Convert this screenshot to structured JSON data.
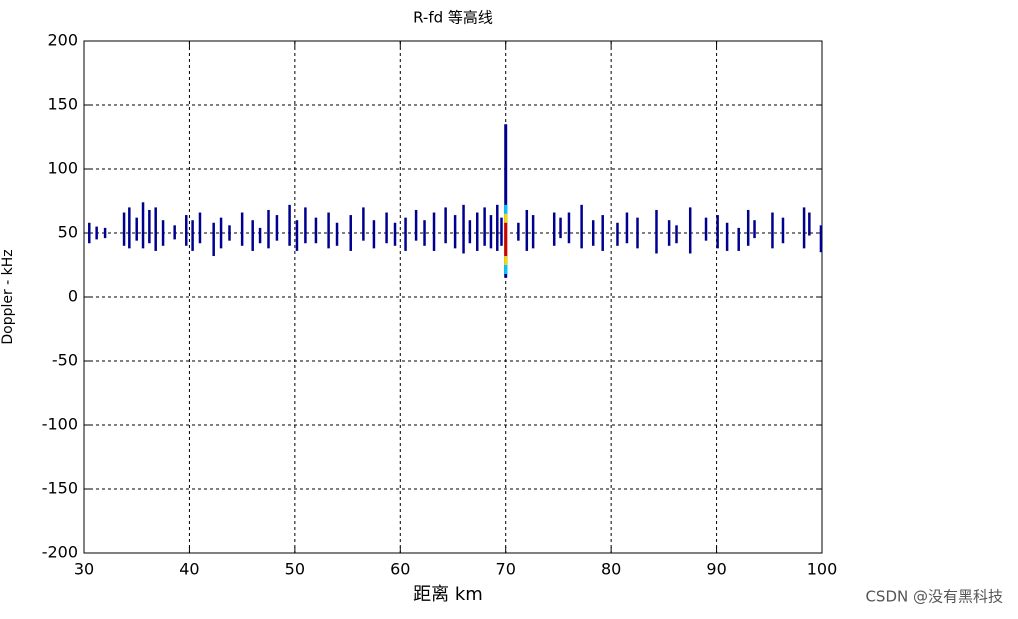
{
  "chart_data": {
    "type": "contour",
    "title": "R-fd 等高线",
    "x_label": "距离 km",
    "y_label": "Doppler - kHz",
    "xlim": [
      30,
      100
    ],
    "xticks": [
      30,
      40,
      50,
      60,
      70,
      80,
      90,
      100
    ],
    "ylim": [
      -200,
      200
    ],
    "yticks": [
      -200,
      -150,
      -100,
      -50,
      0,
      50,
      100,
      150,
      200
    ],
    "grid": true,
    "series": [
      {
        "color": "#00008f",
        "x": [
          30.5,
          31.2,
          32,
          33.8,
          34.3,
          35,
          35.6,
          36.2,
          36.8,
          37.5,
          38.6,
          39.7,
          40.3,
          41,
          42.3,
          43,
          43.8,
          45,
          46,
          46.7,
          47.5,
          48.3,
          49.5,
          50.2,
          51,
          52,
          53.2,
          54,
          55.3,
          56.5,
          57.5,
          58.7,
          59.5,
          60.5,
          61.5,
          62.3,
          63.2,
          64.3,
          65.2,
          66,
          66.6,
          67.3,
          68,
          68.6,
          69.2,
          69.6,
          71.2,
          72,
          72.6,
          74.6,
          75.2,
          76,
          77.2,
          78.3,
          79.2,
          80.6,
          81.5,
          82.5,
          84.3,
          85.5,
          86.2,
          87.5,
          89,
          90.1,
          91,
          92.1,
          93,
          93.6,
          95.3,
          96.3,
          98.3,
          98.8,
          99.9
        ],
        "low": [
          42,
          45,
          46,
          40,
          38,
          44,
          38,
          42,
          36,
          40,
          45,
          40,
          36,
          42,
          32,
          38,
          44,
          40,
          36,
          42,
          38,
          44,
          40,
          36,
          42,
          42,
          38,
          40,
          36,
          44,
          38,
          42,
          40,
          36,
          44,
          40,
          36,
          42,
          38,
          34,
          42,
          36,
          40,
          38,
          36,
          40,
          44,
          36,
          38,
          40,
          46,
          42,
          38,
          40,
          36,
          40,
          42,
          38,
          34,
          40,
          42,
          34,
          44,
          38,
          36,
          36,
          40,
          46,
          38,
          42,
          38,
          48,
          35
        ],
        "high": [
          58,
          55,
          54,
          66,
          70,
          62,
          74,
          68,
          70,
          60,
          56,
          64,
          60,
          66,
          58,
          62,
          56,
          66,
          60,
          54,
          68,
          64,
          72,
          60,
          70,
          62,
          66,
          58,
          64,
          70,
          60,
          66,
          58,
          62,
          68,
          60,
          66,
          70,
          64,
          72,
          60,
          66,
          70,
          64,
          72,
          62,
          58,
          68,
          64,
          66,
          62,
          66,
          72,
          60,
          64,
          58,
          66,
          62,
          68,
          60,
          56,
          70,
          62,
          64,
          58,
          54,
          68,
          60,
          66,
          62,
          70,
          66,
          56
        ]
      },
      {
        "color": "#00008f",
        "x": [
          70
        ],
        "low": [
          15
        ],
        "high": [
          135
        ]
      },
      {
        "color": "#00c8ff",
        "x": [
          70
        ],
        "low": [
          18
        ],
        "high": [
          72
        ]
      },
      {
        "color": "#ffd700",
        "x": [
          70
        ],
        "low": [
          25
        ],
        "high": [
          65
        ]
      },
      {
        "color": "#d00000",
        "x": [
          70
        ],
        "low": [
          32
        ],
        "high": [
          58
        ]
      }
    ]
  },
  "watermark": "CSDN @没有黑科技"
}
